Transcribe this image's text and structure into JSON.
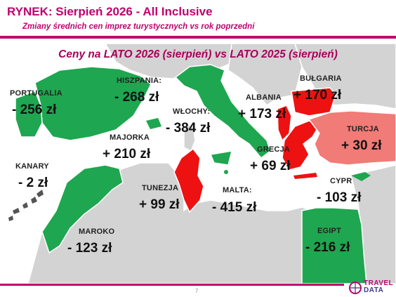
{
  "header": {
    "title": "RYNEK: Sierpień 2026 - All Inclusive",
    "subtitle": "Zmiany średnich cen imprez turystycznych vs rok poprzedni"
  },
  "map": {
    "title": "Ceny na LATO 2026 (sierpień) vs  LATO 2025 (sierpień)",
    "colors": {
      "decrease": "#1fa650",
      "increase": "#ee1111",
      "small_increase": "#f07b77",
      "land": "#d3d3d3",
      "sea": "#ffffff"
    },
    "countries": [
      {
        "name": "PORTUGALIA",
        "value": "- 256 zł",
        "trend": "decrease"
      },
      {
        "name": "HISZPANIA:",
        "value": "- 268 zł",
        "trend": "decrease"
      },
      {
        "name": "WŁOCHY:",
        "value": "- 384 zł",
        "trend": "decrease"
      },
      {
        "name": "ALBANIA",
        "value": "+ 173 zł",
        "trend": "increase"
      },
      {
        "name": "BUŁGARIA",
        "value": "+ 170 zł",
        "trend": "increase"
      },
      {
        "name": "TURCJA",
        "value": "+ 30 zł",
        "trend": "increase"
      },
      {
        "name": "MAJORKA",
        "value": "+ 210 zł",
        "trend": "increase"
      },
      {
        "name": "KANARY",
        "value": "- 2 zł",
        "trend": "decrease"
      },
      {
        "name": "GRECJA",
        "value": "+ 69 zł",
        "trend": "increase"
      },
      {
        "name": "TUNEZJA",
        "value": "+ 99 zł",
        "trend": "increase"
      },
      {
        "name": "MALTA:",
        "value": "- 415 zł",
        "trend": "decrease"
      },
      {
        "name": "CYPR",
        "value": "- 103 zł",
        "trend": "decrease"
      },
      {
        "name": "MAROKO",
        "value": "- 123 zł",
        "trend": "decrease"
      },
      {
        "name": "EGIPT",
        "value": "- 216 zł",
        "trend": "decrease"
      }
    ]
  },
  "footer": {
    "page_number": "7",
    "logo_line1": "TRAVEL",
    "logo_line2": "DATA"
  }
}
